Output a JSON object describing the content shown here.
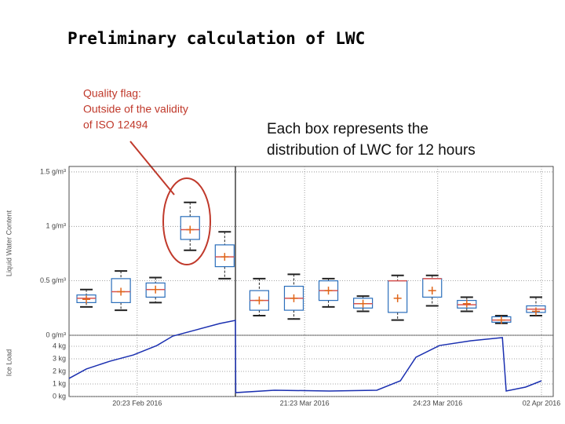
{
  "title": "Preliminary calculation of LWC",
  "flag_note": [
    "Quality flag:",
    "Outside of the validity",
    "of ISO 12494"
  ],
  "box_note": [
    "Each box represents the",
    "distribution of LWC for 12 hours"
  ],
  "chart_data": [
    {
      "type": "box",
      "y_label": "Liquid Water Content",
      "categories": [
        null,
        null,
        null,
        null,
        null,
        null,
        null,
        null,
        null,
        null,
        null,
        null,
        null,
        null
      ],
      "box_color": "#2a6ebb",
      "median_color": "#d9534f",
      "mean_color": "#e0661a",
      "boxes": [
        {
          "q1": 0.3,
          "median": 0.34,
          "q3": 0.37,
          "mean": 0.33,
          "whisker_low": 0.26,
          "whisker_high": 0.42
        },
        {
          "q1": 0.3,
          "median": 0.4,
          "q3": 0.52,
          "mean": 0.4,
          "whisker_low": 0.23,
          "whisker_high": 0.59
        },
        {
          "q1": 0.35,
          "median": 0.42,
          "q3": 0.48,
          "mean": 0.42,
          "whisker_low": 0.3,
          "whisker_high": 0.53
        },
        {
          "q1": 0.88,
          "median": 0.97,
          "q3": 1.09,
          "mean": 0.97,
          "whisker_low": 0.78,
          "whisker_high": 1.22
        },
        {
          "q1": 0.63,
          "median": 0.72,
          "q3": 0.83,
          "mean": 0.72,
          "whisker_low": 0.52,
          "whisker_high": 0.95
        },
        {
          "q1": 0.23,
          "median": 0.32,
          "q3": 0.41,
          "mean": 0.32,
          "whisker_low": 0.18,
          "whisker_high": 0.52
        },
        {
          "q1": 0.23,
          "median": 0.34,
          "q3": 0.45,
          "mean": 0.34,
          "whisker_low": 0.15,
          "whisker_high": 0.56
        },
        {
          "q1": 0.32,
          "median": 0.41,
          "q3": 0.5,
          "mean": 0.41,
          "whisker_low": 0.26,
          "whisker_high": 0.52
        },
        {
          "q1": 0.25,
          "median": 0.29,
          "q3": 0.34,
          "mean": 0.29,
          "whisker_low": 0.22,
          "whisker_high": 0.36
        },
        {
          "q1": 0.21,
          "median": 0.5,
          "q3": 0.5,
          "mean": 0.34,
          "whisker_low": 0.14,
          "whisker_high": 0.55
        },
        {
          "q1": 0.35,
          "median": 0.52,
          "q3": 0.52,
          "mean": 0.41,
          "whisker_low": 0.27,
          "whisker_high": 0.55
        },
        {
          "q1": 0.25,
          "median": 0.28,
          "q3": 0.32,
          "mean": 0.29,
          "whisker_low": 0.22,
          "whisker_high": 0.35
        },
        {
          "q1": 0.12,
          "median": 0.14,
          "q3": 0.17,
          "mean": 0.14,
          "whisker_low": 0.11,
          "whisker_high": 0.18
        },
        {
          "q1": 0.21,
          "median": 0.24,
          "q3": 0.27,
          "mean": 0.22,
          "whisker_low": 0.18,
          "whisker_high": 0.35
        }
      ],
      "ylim": [
        0,
        1.55
      ],
      "yticks": [
        {
          "value": 0,
          "label": "0 g/m³"
        },
        {
          "value": 0.5,
          "label": "0.5 g/m³"
        },
        {
          "value": 1,
          "label": "1 g/m³"
        },
        {
          "value": 1.5,
          "label": "1.5 g/m³"
        }
      ],
      "grid": true
    },
    {
      "type": "line",
      "y_label": "Ice Load",
      "color": "#1a2fb0",
      "x": [
        0,
        0.5,
        1.18,
        1.86,
        2.54,
        3.0,
        3.68,
        4.36,
        4.81,
        4.82,
        5.94,
        7.53,
        8.9,
        9.58,
        10.03,
        10.71,
        11.62,
        12.53,
        12.64,
        13.2,
        13.66
      ],
      "values": [
        1.44,
        2.19,
        2.81,
        3.31,
        4.06,
        4.81,
        5.31,
        5.81,
        6.06,
        0.31,
        0.5,
        0.44,
        0.5,
        1.25,
        3.13,
        4.06,
        4.44,
        4.69,
        0.44,
        0.75,
        1.25
      ],
      "xlim": [
        0,
        14
      ],
      "xticks": [
        {
          "value": 1.97,
          "label": "20:23 Feb 2016"
        },
        {
          "value": 6.81,
          "label": "21:23 Mar 2016"
        },
        {
          "value": 10.66,
          "label": "24:23 Mar 2016"
        },
        {
          "value": 13.66,
          "label": "02 Apr 2016"
        }
      ],
      "ylim": [
        0,
        4.875
      ],
      "yticks": [
        {
          "value": 0,
          "label": "0 kg"
        },
        {
          "value": 1,
          "label": "1 kg"
        },
        {
          "value": 2,
          "label": "2 kg"
        },
        {
          "value": 3,
          "label": "3 kg"
        },
        {
          "value": 4,
          "label": "4 kg"
        }
      ],
      "grid": true
    }
  ]
}
